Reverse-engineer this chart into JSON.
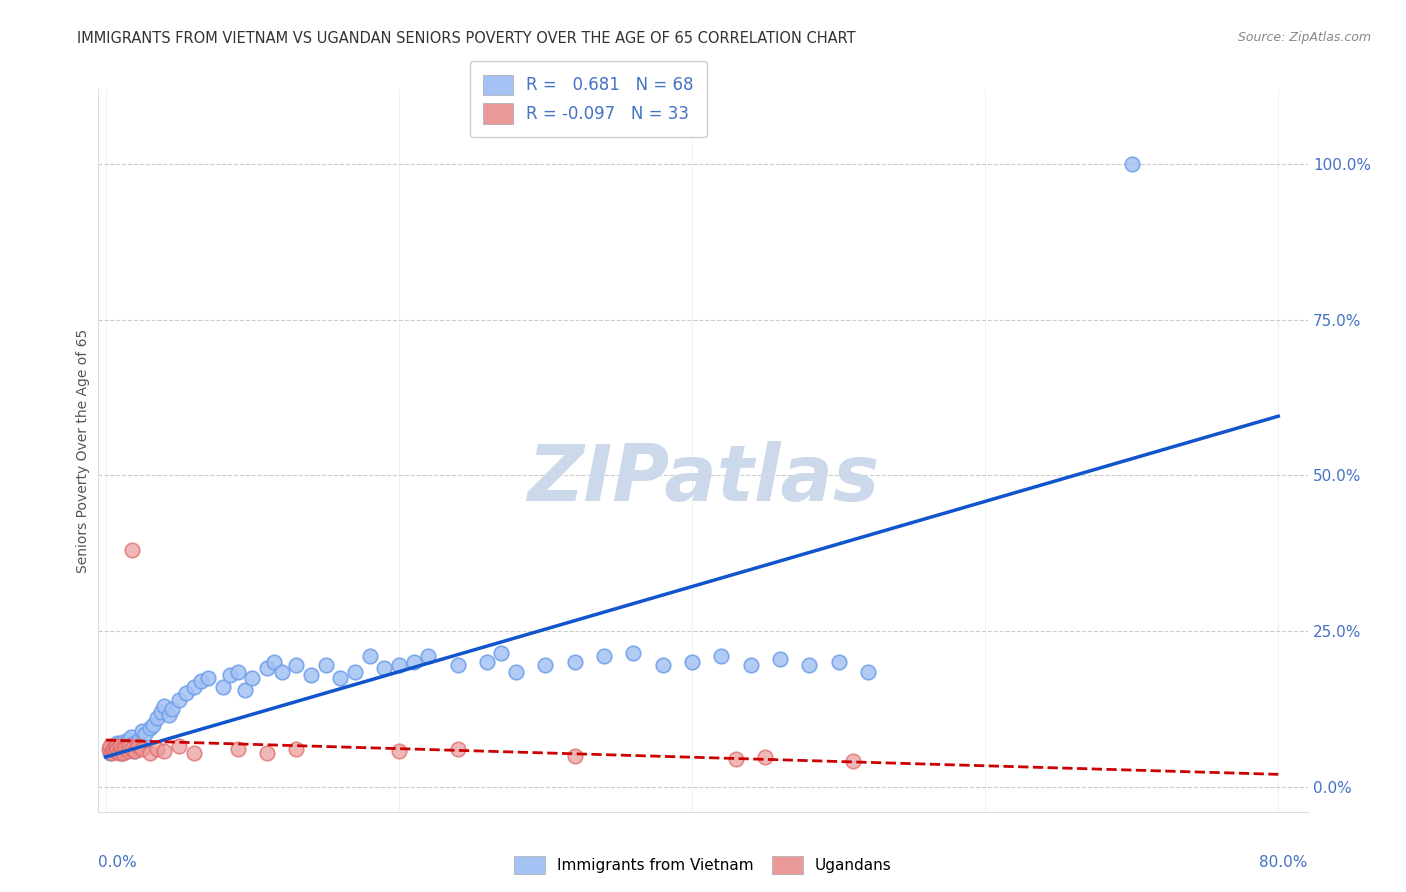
{
  "title": "IMMIGRANTS FROM VIETNAM VS UGANDAN SENIORS POVERTY OVER THE AGE OF 65 CORRELATION CHART",
  "source": "Source: ZipAtlas.com",
  "ylabel": "Seniors Poverty Over the Age of 65",
  "xlim": [
    -0.005,
    0.82
  ],
  "ylim": [
    -0.04,
    1.12
  ],
  "yticks_right": [
    0.0,
    0.25,
    0.5,
    0.75,
    1.0
  ],
  "yticklabels_right": [
    "0.0%",
    "25.0%",
    "50.0%",
    "75.0%",
    "100.0%"
  ],
  "R_vietnam": 0.681,
  "N_vietnam": 68,
  "R_ugandan": -0.097,
  "N_ugandan": 33,
  "blue_color": "#a4c2f4",
  "blue_edge_color": "#6d9eeb",
  "pink_color": "#ea9999",
  "pink_edge_color": "#e06666",
  "blue_line_color": "#1155cc",
  "pink_line_color": "#cc0000",
  "grid_color": "#cccccc",
  "watermark_color": "#ccd9ea",
  "legend_label_color": "#4472c4",
  "axis_label_color": "#4472c4",
  "title_color": "#333333",
  "source_color": "#888888",
  "ylabel_color": "#555555",
  "viet_x": [
    0.003,
    0.005,
    0.006,
    0.007,
    0.008,
    0.009,
    0.01,
    0.011,
    0.012,
    0.013,
    0.014,
    0.015,
    0.016,
    0.017,
    0.018,
    0.019,
    0.02,
    0.022,
    0.023,
    0.025,
    0.027,
    0.03,
    0.032,
    0.035,
    0.038,
    0.04,
    0.043,
    0.045,
    0.05,
    0.055,
    0.06,
    0.065,
    0.07,
    0.08,
    0.085,
    0.09,
    0.095,
    0.1,
    0.11,
    0.115,
    0.12,
    0.13,
    0.14,
    0.15,
    0.16,
    0.17,
    0.18,
    0.19,
    0.2,
    0.21,
    0.22,
    0.24,
    0.26,
    0.27,
    0.28,
    0.3,
    0.32,
    0.34,
    0.36,
    0.38,
    0.4,
    0.42,
    0.44,
    0.46,
    0.48,
    0.5,
    0.52,
    0.7
  ],
  "viet_y": [
    0.055,
    0.06,
    0.065,
    0.058,
    0.07,
    0.062,
    0.068,
    0.055,
    0.072,
    0.058,
    0.065,
    0.075,
    0.06,
    0.08,
    0.068,
    0.058,
    0.065,
    0.07,
    0.075,
    0.09,
    0.085,
    0.095,
    0.1,
    0.11,
    0.12,
    0.13,
    0.115,
    0.125,
    0.14,
    0.15,
    0.16,
    0.17,
    0.175,
    0.16,
    0.18,
    0.185,
    0.155,
    0.175,
    0.19,
    0.2,
    0.185,
    0.195,
    0.18,
    0.195,
    0.175,
    0.185,
    0.21,
    0.19,
    0.195,
    0.2,
    0.21,
    0.195,
    0.2,
    0.215,
    0.185,
    0.195,
    0.2,
    0.21,
    0.215,
    0.195,
    0.2,
    0.21,
    0.195,
    0.205,
    0.195,
    0.2,
    0.185,
    1.0
  ],
  "ug_x": [
    0.002,
    0.003,
    0.004,
    0.005,
    0.006,
    0.007,
    0.008,
    0.009,
    0.01,
    0.011,
    0.012,
    0.013,
    0.015,
    0.016,
    0.018,
    0.02,
    0.022,
    0.025,
    0.018,
    0.03,
    0.035,
    0.04,
    0.05,
    0.06,
    0.09,
    0.11,
    0.13,
    0.2,
    0.24,
    0.32,
    0.43,
    0.45,
    0.51
  ],
  "ug_y": [
    0.06,
    0.065,
    0.055,
    0.06,
    0.058,
    0.065,
    0.06,
    0.055,
    0.065,
    0.06,
    0.055,
    0.062,
    0.058,
    0.065,
    0.06,
    0.058,
    0.065,
    0.06,
    0.38,
    0.055,
    0.06,
    0.058,
    0.065,
    0.055,
    0.06,
    0.055,
    0.06,
    0.058,
    0.06,
    0.05,
    0.045,
    0.048,
    0.042
  ],
  "viet_line_x": [
    0.0,
    0.8
  ],
  "viet_line_y": [
    0.048,
    0.595
  ],
  "ug_line_x": [
    0.0,
    0.8
  ],
  "ug_line_y": [
    0.075,
    0.02
  ]
}
